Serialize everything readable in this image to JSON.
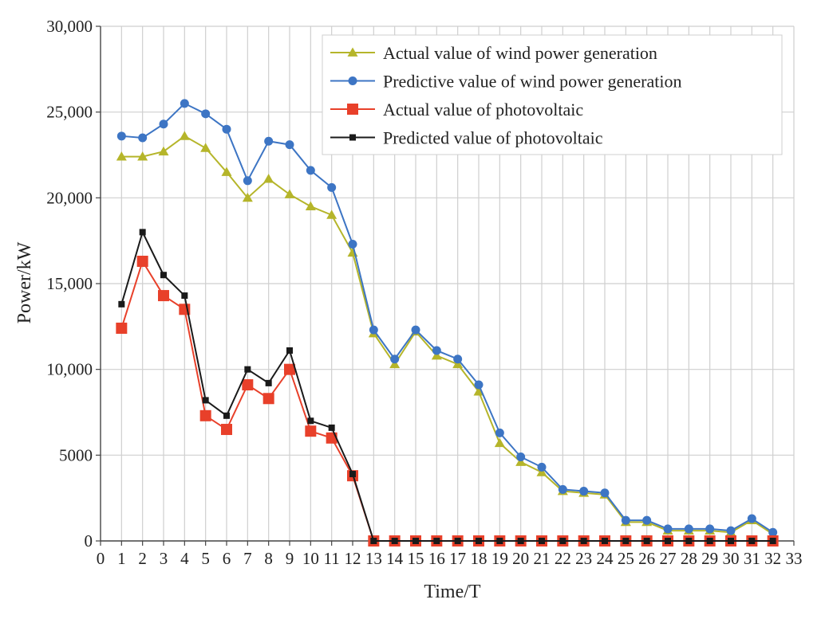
{
  "chart_data": {
    "type": "line",
    "title": "",
    "xlabel": "Time/T",
    "ylabel": "Power/kW",
    "xlim": [
      0,
      33
    ],
    "ylim": [
      0,
      30000
    ],
    "grid": true,
    "legend_position": "top-right",
    "x_ticks": [
      0,
      1,
      2,
      3,
      4,
      5,
      6,
      7,
      8,
      9,
      10,
      11,
      12,
      13,
      14,
      15,
      16,
      17,
      18,
      19,
      20,
      21,
      22,
      23,
      24,
      25,
      26,
      27,
      28,
      29,
      30,
      31,
      32,
      33
    ],
    "x_tick_labels": [
      "0",
      "1",
      "2",
      "3",
      "4",
      "5",
      "6",
      "7",
      "8",
      "9",
      "10",
      "11",
      "12",
      "13",
      "14",
      "15",
      "16",
      "17",
      "18",
      "19",
      "20",
      "21",
      "22",
      "23",
      "24",
      "25",
      "26",
      "27",
      "28",
      "29",
      "30",
      "31",
      "32",
      "33"
    ],
    "y_ticks": [
      0,
      5000,
      10000,
      15000,
      20000,
      25000,
      30000
    ],
    "y_tick_labels": [
      "0",
      "5000",
      "10,000",
      "15,000",
      "20,000",
      "25,000",
      "30,000"
    ],
    "x": [
      1,
      2,
      3,
      4,
      5,
      6,
      7,
      8,
      9,
      10,
      11,
      12,
      13,
      14,
      15,
      16,
      17,
      18,
      19,
      20,
      21,
      22,
      23,
      24,
      25,
      26,
      27,
      28,
      29,
      30,
      31,
      32
    ],
    "series": [
      {
        "name": "Actual value of wind power generation",
        "color": "#b5b52a",
        "marker": "triangle",
        "values": [
          22400,
          22400,
          22700,
          23600,
          22900,
          21500,
          20000,
          21100,
          20200,
          19500,
          19000,
          16800,
          12100,
          10300,
          12200,
          10800,
          10300,
          8700,
          5700,
          4600,
          4000,
          2900,
          2800,
          2700,
          1100,
          1100,
          600,
          600,
          600,
          500,
          1200,
          400
        ]
      },
      {
        "name": "Predictive value of wind power generation",
        "color": "#3d75c4",
        "marker": "circle",
        "values": [
          23600,
          23500,
          24300,
          25500,
          24900,
          24000,
          21000,
          23300,
          23100,
          21600,
          20600,
          17300,
          12300,
          10600,
          12300,
          11100,
          10600,
          9100,
          6300,
          4900,
          4300,
          3000,
          2900,
          2800,
          1200,
          1200,
          700,
          700,
          700,
          600,
          1300,
          500
        ]
      },
      {
        "name": "Actual value of photovoltaic",
        "color": "#e8402a",
        "marker": "square",
        "values": [
          12400,
          16300,
          14300,
          13500,
          7300,
          6500,
          9100,
          8300,
          10000,
          6400,
          6000,
          3800,
          0,
          0,
          0,
          0,
          0,
          0,
          0,
          0,
          0,
          0,
          0,
          0,
          0,
          0,
          0,
          0,
          0,
          0,
          0,
          0
        ]
      },
      {
        "name": "Predicted value of photovoltaic",
        "color": "#1a1a1a",
        "marker": "small-square",
        "values": [
          13800,
          18000,
          15500,
          14300,
          8200,
          7300,
          10000,
          9200,
          11100,
          7000,
          6600,
          3900,
          0,
          0,
          0,
          0,
          0,
          0,
          0,
          0,
          0,
          0,
          0,
          0,
          0,
          0,
          0,
          0,
          0,
          0,
          0,
          0
        ]
      }
    ]
  }
}
